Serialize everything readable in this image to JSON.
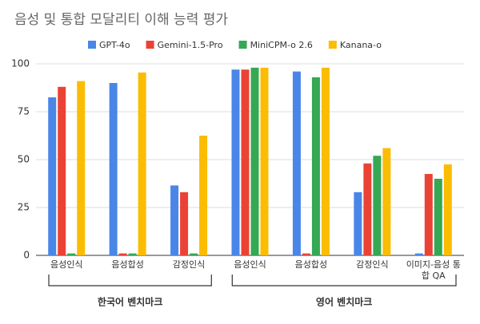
{
  "chart_data": {
    "type": "bar",
    "title": "음성 및 통합 모달리티 이해 능력 평가",
    "categories": [
      "음성인식",
      "음성합성",
      "감정인식",
      "음성인식",
      "음성합성",
      "감정인식",
      "이미지-음성 통합 QA"
    ],
    "group_labels": [
      "한국어 벤치마크",
      "영어 벤치마크"
    ],
    "series": [
      {
        "name": "GPT-4o",
        "color": "#4a86e8",
        "values": [
          82.5,
          90,
          36.5,
          97,
          96,
          33,
          1
        ]
      },
      {
        "name": "Gemini-1.5-Pro",
        "color": "#ea4335",
        "values": [
          88,
          1,
          33,
          97,
          1,
          48,
          42.5
        ]
      },
      {
        "name": "MiniCPM-o 2.6",
        "color": "#34a853",
        "values": [
          1,
          1,
          1,
          98,
          93,
          52,
          40
        ]
      },
      {
        "name": "Kanana-o",
        "color": "#fbbc04",
        "values": [
          91,
          95.5,
          62.5,
          98,
          98,
          56,
          47.5
        ]
      }
    ],
    "ylim": [
      0,
      100
    ],
    "yticks": [
      0,
      25,
      50,
      75,
      100
    ],
    "grid": true,
    "legend": "top"
  }
}
